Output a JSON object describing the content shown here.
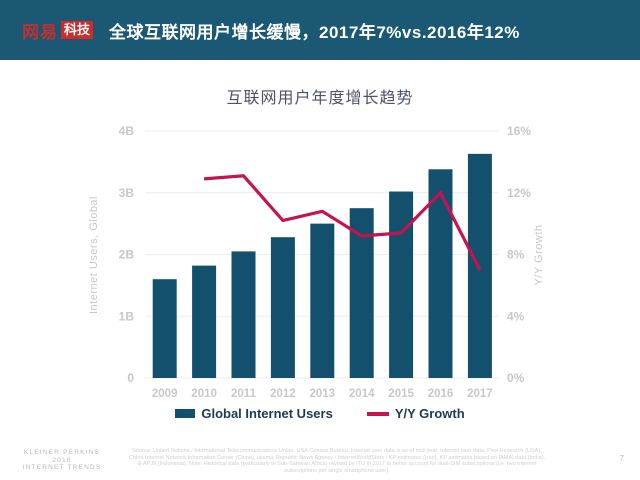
{
  "header": {
    "logo_brand": "网易",
    "logo_badge": "科技",
    "title": "全球互联网用户增长缓慢，2017年7%vs.2016年12%"
  },
  "chart_data": {
    "type": "bar",
    "title": "互联网用户年度增长趋势",
    "categories": [
      "2009",
      "2010",
      "2011",
      "2012",
      "2013",
      "2014",
      "2015",
      "2016",
      "2017"
    ],
    "series": [
      {
        "name": "Global Internet Users",
        "style": "bar",
        "axis": "left",
        "unit": "billions",
        "color": "#12506E",
        "values": [
          1.6,
          1.82,
          2.05,
          2.28,
          2.5,
          2.75,
          3.02,
          3.38,
          3.63
        ]
      },
      {
        "name": "Y/Y Growth",
        "style": "line",
        "axis": "right",
        "unit": "percent",
        "color": "#C4134E",
        "values": [
          null,
          12.9,
          13.1,
          10.2,
          10.8,
          9.2,
          9.4,
          12.0,
          7.0
        ]
      }
    ],
    "left_axis": {
      "title": "Internet Users, Global",
      "ticks": [
        "0",
        "1B",
        "2B",
        "3B",
        "4B"
      ],
      "range": [
        0,
        4
      ]
    },
    "right_axis": {
      "title": "Y/Y Growth",
      "ticks": [
        "0%",
        "4%",
        "8%",
        "12%",
        "16%"
      ],
      "range": [
        0,
        16
      ]
    },
    "legend_position": "bottom",
    "grid": true
  },
  "footer": {
    "brand_lines": [
      "KLEINER PERKINS",
      "2018",
      "INTERNET TRENDS"
    ],
    "source": "Source: United Nations / International Telecommunications Union, USA Census Bureau. Internet user data is as of mid-year. Internet user data: Pew Research (USA), China Internet Network Information Center (China), Islamic Republic News Agency / InternetWorldStats / KP estimates (Iran), KP estimates based on IAMAI data (India), & APJII (Indonesia). Note: Historical data (particularly in Sub-Saharan Africa) revised by ITU in 2017 to better account for dual-SIM subscriptions (i.e. two Internet subscriptions per single smartphone user).",
    "page_number": "7"
  },
  "colors": {
    "header_background": "#1A5873",
    "logo_red": "#CE2B2B",
    "bar": "#12506E",
    "line": "#C4134E",
    "gridline": "#ECECEC",
    "axis_text": "#C8C8C8",
    "chart_title_text": "#4A5468",
    "legend_text": "#1F3A52"
  }
}
